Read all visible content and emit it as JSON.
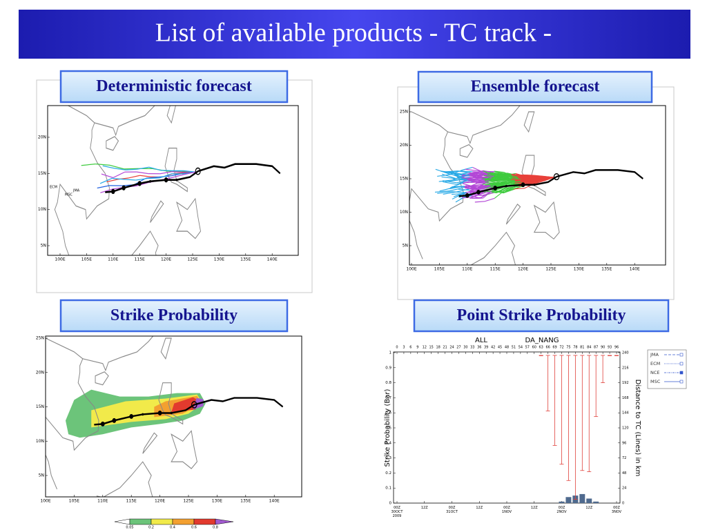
{
  "title": "List of available products - TC track -",
  "panels": [
    {
      "label": "Deterministic forecast",
      "x_labels": [
        "100E",
        "105E",
        "110E",
        "115E",
        "120E",
        "125E",
        "130E",
        "135E",
        "140E"
      ],
      "y_labels": [
        "5N",
        "10N",
        "15N",
        "20N"
      ],
      "track_labels": [
        "ECM",
        "JMA",
        "MSC"
      ]
    },
    {
      "label": "Ensemble forecast",
      "x_labels": [
        "100E",
        "105E",
        "110E",
        "115E",
        "120E",
        "125E",
        "130E",
        "135E",
        "140E"
      ],
      "y_labels": [
        "5N",
        "10N",
        "15N",
        "20N",
        "25N"
      ]
    },
    {
      "label": "Strike Probability",
      "x_labels": [
        "100E",
        "105E",
        "110E",
        "115E",
        "120E",
        "125E",
        "130E",
        "135E",
        "140E"
      ],
      "y_labels": [
        "5N",
        "10N",
        "15N",
        "20N",
        "25N"
      ],
      "colorbar": [
        0.05,
        0.2,
        0.4,
        0.6,
        0.8
      ]
    },
    {
      "label": "Point Strike Probability",
      "chart": {
        "type": "bar",
        "title_left": "ALL",
        "title_right": "DA_NANG",
        "y_label": "Strike Probability (Bar)",
        "y2_label": "Distance to TC (Lines) in km",
        "xlim": [
          0,
          96
        ],
        "top_ticks": [
          0,
          3,
          6,
          9,
          12,
          15,
          18,
          21,
          24,
          27,
          30,
          33,
          36,
          39,
          42,
          45,
          48,
          51,
          54,
          57,
          60,
          63,
          66,
          69,
          72,
          75,
          78,
          81,
          84,
          87,
          90,
          93,
          96
        ],
        "xticks": [
          {
            "value": 0,
            "label": "00Z 30OCT 2009"
          },
          {
            "value": 12,
            "label": "12Z"
          },
          {
            "value": 24,
            "label": "00Z 31OCT"
          },
          {
            "value": 36,
            "label": "12Z"
          },
          {
            "value": 48,
            "label": "00Z 1NOV"
          },
          {
            "value": 60,
            "label": "12Z"
          },
          {
            "value": 72,
            "label": "00Z 2NOV"
          },
          {
            "value": 84,
            "label": "12Z"
          },
          {
            "value": 96,
            "label": "00Z 3NOV"
          }
        ],
        "ylim": [
          0,
          1
        ],
        "yticks": [
          0,
          0.1,
          0.2,
          0.3,
          0.4,
          0.5,
          0.6,
          0.7,
          0.8,
          0.9,
          1
        ],
        "y2lim": [
          0,
          240
        ],
        "y2ticks": [
          0,
          24,
          48,
          72,
          96,
          120,
          144,
          168,
          192,
          216,
          240
        ],
        "bars": {
          "color": "#4f6a8e",
          "x": [
            72,
            75,
            78,
            81,
            84,
            87
          ],
          "values": [
            0.01,
            0.04,
            0.05,
            0.06,
            0.03,
            0.01
          ]
        },
        "lines": {
          "color": "#e0403a",
          "axis": "y2",
          "x": [
            63,
            66,
            69,
            72,
            75,
            78,
            81,
            84,
            87,
            90,
            93,
            96
          ],
          "values": [
            235,
            147,
            92,
            62,
            36,
            6,
            52,
            50,
            138,
            192,
            235,
            235
          ]
        },
        "legend": [
          "JMA",
          "ECM",
          "NCE",
          "MSC"
        ]
      }
    }
  ]
}
